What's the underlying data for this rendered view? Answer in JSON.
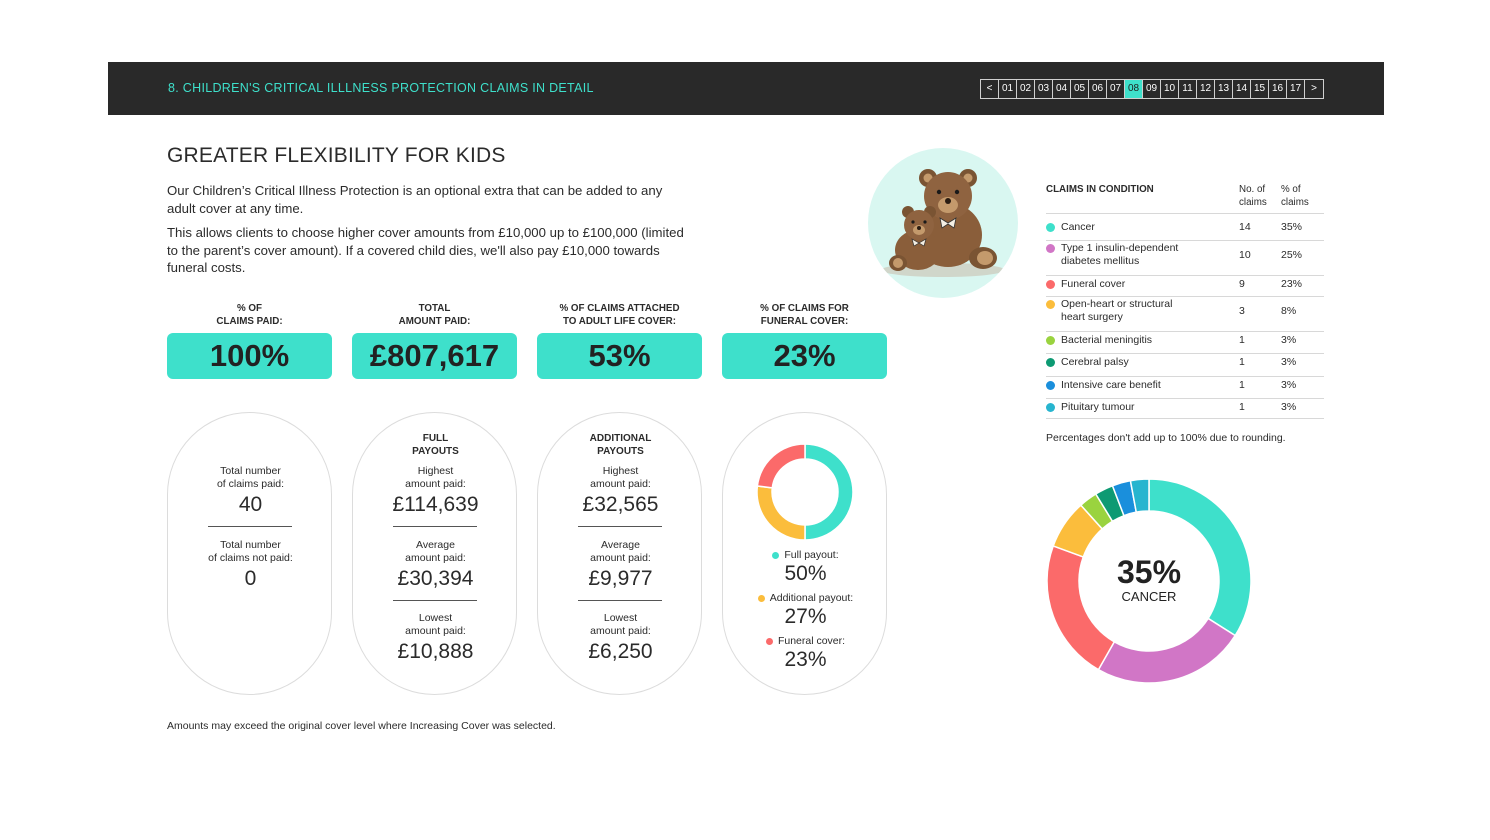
{
  "header": {
    "title": "8. CHILDREN'S CRITICAL ILLLNESS PROTECTION CLAIMS IN DETAIL",
    "pager": [
      "<",
      "01",
      "02",
      "03",
      "04",
      "05",
      "06",
      "07",
      "08",
      "09",
      "10",
      "11",
      "12",
      "13",
      "14",
      "15",
      "16",
      "17",
      ">"
    ],
    "active_page": "08"
  },
  "intro": {
    "heading": "GREATER FLEXIBILITY FOR KIDS",
    "para1": "Our Children’s Critical Illness Protection is an optional extra that can be added to any adult cover at any time.",
    "para2": "This allows clients to choose higher cover amounts from £10,000 up to £100,000 (limited to the parent’s cover amount). If a covered child dies, we'll also pay £10,000 towards funeral costs."
  },
  "stats": [
    {
      "label1": "% OF",
      "label2": "CLAIMS PAID:",
      "value": "100%"
    },
    {
      "label1": "TOTAL",
      "label2": "AMOUNT PAID:",
      "value": "£807,617"
    },
    {
      "label1": "% OF CLAIMS ATTACHED",
      "label2": "TO ADULT LIFE COVER:",
      "value": "53%"
    },
    {
      "label1": "% OF CLAIMS FOR",
      "label2": "FUNERAL COVER:",
      "value": "23%"
    }
  ],
  "pill1": {
    "paid_l1": "Total number",
    "paid_l2": "of claims paid:",
    "paid_value": "40",
    "notpaid_l1": "Total number",
    "notpaid_l2": "of claims not paid:",
    "notpaid_value": "0"
  },
  "pill2": {
    "title1": "FULL",
    "title2": "PAYOUTS",
    "high_l1": "Highest",
    "high_l2": "amount paid:",
    "high_value": "£114,639",
    "avg_l1": "Average",
    "avg_l2": "amount paid:",
    "avg_value": "£30,394",
    "low_l1": "Lowest",
    "low_l2": "amount paid:",
    "low_value": "£10,888"
  },
  "pill3": {
    "title1": "ADDITIONAL",
    "title2": "PAYOUTS",
    "high_l1": "Highest",
    "high_l2": "amount paid:",
    "high_value": "£32,565",
    "avg_l1": "Average",
    "avg_l2": "amount paid:",
    "avg_value": "£9,977",
    "low_l1": "Lowest",
    "low_l2": "amount paid:",
    "low_value": "£6,250"
  },
  "payout_chart": {
    "items": [
      {
        "label": "Full payout:",
        "value": "50%",
        "pct": 50,
        "color": "#3ee0cb"
      },
      {
        "label": "Additional payout:",
        "value": "27%",
        "pct": 27,
        "color": "#fbbd3c"
      },
      {
        "label": "Funeral cover:",
        "value": "23%",
        "pct": 23,
        "color": "#fb6a6a"
      }
    ]
  },
  "table": {
    "head_condition": "CLAIMS IN CONDITION",
    "head_num1": "No. of",
    "head_num2": "claims",
    "head_pct1": "% of",
    "head_pct2": "claims",
    "rows": [
      {
        "line1": "Cancer",
        "line2": "",
        "num": "14",
        "pct": "35%",
        "color": "#3ee0cb"
      },
      {
        "line1": "Type 1 insulin-dependent",
        "line2": "diabetes mellitus",
        "num": "10",
        "pct": "25%",
        "color": "#d176c6"
      },
      {
        "line1": "Funeral cover",
        "line2": "",
        "num": "9",
        "pct": "23%",
        "color": "#fb6a6a"
      },
      {
        "line1": "Open-heart or structural",
        "line2": "heart surgery",
        "num": "3",
        "pct": "8%",
        "color": "#fbbd3c"
      },
      {
        "line1": "Bacterial meningitis",
        "line2": "",
        "num": "1",
        "pct": "3%",
        "color": "#9ad33f"
      },
      {
        "line1": "Cerebral palsy",
        "line2": "",
        "num": "1",
        "pct": "3%",
        "color": "#0d9a73"
      },
      {
        "line1": "Intensive care benefit",
        "line2": "",
        "num": "1",
        "pct": "3%",
        "color": "#1a8fdc"
      },
      {
        "line1": "Pituitary tumour",
        "line2": "",
        "num": "1",
        "pct": "3%",
        "color": "#27b5cf"
      }
    ],
    "note": "Percentages don't add up to 100% due to rounding."
  },
  "condition_chart": {
    "center_value": "35%",
    "center_label": "CANCER",
    "segments": [
      35,
      25,
      23,
      8,
      3,
      3,
      3,
      3
    ]
  },
  "footnote": "Amounts may exceed the original cover level where Increasing Cover was selected."
}
